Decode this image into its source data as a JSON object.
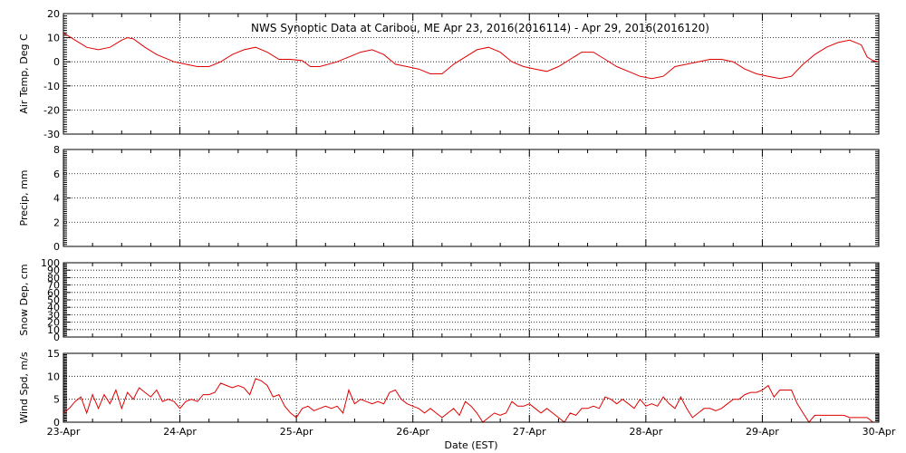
{
  "chart_data": {
    "type": "line",
    "title": "NWS Synoptic Data at Caribou, ME   Apr 23, 2016(2016114) - Apr 29, 2016(2016120)",
    "xlabel": "Date (EST)",
    "x_ticks": [
      "23-Apr",
      "24-Apr",
      "25-Apr",
      "26-Apr",
      "27-Apr",
      "28-Apr",
      "29-Apr",
      "30-Apr"
    ],
    "x_range_days": [
      0,
      7
    ],
    "grid": true,
    "panels": [
      {
        "ylabel": "Air Temp, Deg C",
        "ylim": [
          -30,
          20
        ],
        "yticks": [
          -30,
          -20,
          -10,
          0,
          10,
          20
        ],
        "series": [
          {
            "color": "#e00000",
            "points": [
              [
                0,
                12
              ],
              [
                0.1,
                9
              ],
              [
                0.2,
                6
              ],
              [
                0.3,
                5
              ],
              [
                0.4,
                6
              ],
              [
                0.5,
                9
              ],
              [
                0.55,
                10
              ],
              [
                0.6,
                9.5
              ],
              [
                0.7,
                6
              ],
              [
                0.8,
                3
              ],
              [
                0.95,
                0
              ],
              [
                1.05,
                -1
              ],
              [
                1.15,
                -2
              ],
              [
                1.25,
                -2
              ],
              [
                1.35,
                0
              ],
              [
                1.45,
                3
              ],
              [
                1.55,
                5
              ],
              [
                1.65,
                6
              ],
              [
                1.75,
                4
              ],
              [
                1.85,
                1
              ],
              [
                1.95,
                1
              ],
              [
                2.05,
                0.5
              ],
              [
                2.12,
                -2
              ],
              [
                2.2,
                -2
              ],
              [
                2.35,
                0
              ],
              [
                2.45,
                2
              ],
              [
                2.55,
                4
              ],
              [
                2.65,
                5
              ],
              [
                2.75,
                3
              ],
              [
                2.85,
                -1
              ],
              [
                2.95,
                -2
              ],
              [
                3.05,
                -3
              ],
              [
                3.15,
                -5
              ],
              [
                3.25,
                -5
              ],
              [
                3.35,
                -1
              ],
              [
                3.45,
                2
              ],
              [
                3.55,
                5
              ],
              [
                3.65,
                6
              ],
              [
                3.75,
                4
              ],
              [
                3.85,
                0
              ],
              [
                3.95,
                -2
              ],
              [
                4.05,
                -3
              ],
              [
                4.15,
                -4
              ],
              [
                4.25,
                -2
              ],
              [
                4.35,
                1
              ],
              [
                4.45,
                4
              ],
              [
                4.55,
                4
              ],
              [
                4.65,
                1
              ],
              [
                4.75,
                -2
              ],
              [
                4.85,
                -4
              ],
              [
                4.95,
                -6
              ],
              [
                5.05,
                -7
              ],
              [
                5.15,
                -6
              ],
              [
                5.25,
                -2
              ],
              [
                5.35,
                -1
              ],
              [
                5.45,
                0
              ],
              [
                5.55,
                1
              ],
              [
                5.65,
                1
              ],
              [
                5.75,
                0
              ],
              [
                5.85,
                -3
              ],
              [
                5.95,
                -5
              ],
              [
                6.05,
                -6
              ],
              [
                6.15,
                -7
              ],
              [
                6.25,
                -6
              ],
              [
                6.35,
                -1
              ],
              [
                6.45,
                3
              ],
              [
                6.55,
                6
              ],
              [
                6.65,
                8
              ],
              [
                6.75,
                9
              ],
              [
                6.85,
                7
              ],
              [
                6.9,
                2
              ],
              [
                6.95,
                0.5
              ],
              [
                7,
                0
              ]
            ]
          }
        ]
      },
      {
        "ylabel": "Precip, mm",
        "ylim": [
          0,
          8
        ],
        "yticks": [
          0,
          2,
          4,
          6,
          8
        ],
        "series": []
      },
      {
        "ylabel": "Snow Dep, cm",
        "ylim": [
          0,
          100
        ],
        "yticks": [
          0,
          10,
          20,
          30,
          40,
          50,
          60,
          70,
          80,
          90,
          100
        ],
        "series": []
      },
      {
        "ylabel": "Wind Spd, m/s",
        "ylim": [
          0,
          15
        ],
        "yticks": [
          0,
          5,
          10,
          15
        ],
        "series": [
          {
            "color": "#e00000",
            "points": [
              [
                0,
                2
              ],
              [
                0.05,
                3
              ],
              [
                0.1,
                4.5
              ],
              [
                0.15,
                5.5
              ],
              [
                0.2,
                2
              ],
              [
                0.25,
                6
              ],
              [
                0.3,
                3
              ],
              [
                0.35,
                6
              ],
              [
                0.4,
                4
              ],
              [
                0.45,
                7
              ],
              [
                0.5,
                3
              ],
              [
                0.55,
                6.5
              ],
              [
                0.6,
                5
              ],
              [
                0.65,
                7.5
              ],
              [
                0.7,
                6.5
              ],
              [
                0.75,
                5.5
              ],
              [
                0.8,
                7
              ],
              [
                0.85,
                4.5
              ],
              [
                0.9,
                5
              ],
              [
                0.95,
                4.5
              ],
              [
                1,
                3
              ],
              [
                1.05,
                4.5
              ],
              [
                1.1,
                5
              ],
              [
                1.15,
                4.5
              ],
              [
                1.2,
                6
              ],
              [
                1.25,
                6
              ],
              [
                1.3,
                6.5
              ],
              [
                1.35,
                8.5
              ],
              [
                1.4,
                8
              ],
              [
                1.45,
                7.5
              ],
              [
                1.5,
                8
              ],
              [
                1.55,
                7.5
              ],
              [
                1.6,
                6
              ],
              [
                1.65,
                9.5
              ],
              [
                1.7,
                9
              ],
              [
                1.75,
                8
              ],
              [
                1.8,
                5.5
              ],
              [
                1.85,
                6
              ],
              [
                1.9,
                3.5
              ],
              [
                1.95,
                2
              ],
              [
                2,
                1
              ],
              [
                2.05,
                3
              ],
              [
                2.1,
                3.5
              ],
              [
                2.15,
                2.5
              ],
              [
                2.2,
                3
              ],
              [
                2.25,
                3.5
              ],
              [
                2.3,
                3
              ],
              [
                2.35,
                3.5
              ],
              [
                2.4,
                2
              ],
              [
                2.45,
                7
              ],
              [
                2.5,
                4
              ],
              [
                2.55,
                5
              ],
              [
                2.6,
                4.5
              ],
              [
                2.65,
                4
              ],
              [
                2.7,
                4.5
              ],
              [
                2.75,
                4
              ],
              [
                2.8,
                6.5
              ],
              [
                2.85,
                7
              ],
              [
                2.9,
                5
              ],
              [
                2.95,
                4
              ],
              [
                3,
                3.5
              ],
              [
                3.05,
                3
              ],
              [
                3.1,
                2
              ],
              [
                3.15,
                3
              ],
              [
                3.2,
                2
              ],
              [
                3.25,
                1
              ],
              [
                3.3,
                2
              ],
              [
                3.35,
                3
              ],
              [
                3.4,
                1.5
              ],
              [
                3.45,
                4.5
              ],
              [
                3.5,
                3.5
              ],
              [
                3.55,
                2
              ],
              [
                3.6,
                0
              ],
              [
                3.65,
                1
              ],
              [
                3.7,
                2
              ],
              [
                3.75,
                1.5
              ],
              [
                3.8,
                2
              ],
              [
                3.85,
                4.5
              ],
              [
                3.9,
                3.5
              ],
              [
                3.95,
                3.5
              ],
              [
                4,
                4
              ],
              [
                4.05,
                3
              ],
              [
                4.1,
                2
              ],
              [
                4.15,
                3
              ],
              [
                4.2,
                2
              ],
              [
                4.25,
                1
              ],
              [
                4.3,
                0
              ],
              [
                4.35,
                2
              ],
              [
                4.4,
                1.5
              ],
              [
                4.45,
                3
              ],
              [
                4.5,
                3
              ],
              [
                4.55,
                3.5
              ],
              [
                4.6,
                3
              ],
              [
                4.65,
                5.5
              ],
              [
                4.7,
                5
              ],
              [
                4.75,
                4
              ],
              [
                4.8,
                5
              ],
              [
                4.85,
                4
              ],
              [
                4.9,
                3
              ],
              [
                4.95,
                5
              ],
              [
                5,
                3.5
              ],
              [
                5.05,
                4
              ],
              [
                5.1,
                3.5
              ],
              [
                5.15,
                5.5
              ],
              [
                5.2,
                4
              ],
              [
                5.25,
                3
              ],
              [
                5.3,
                5.5
              ],
              [
                5.35,
                3
              ],
              [
                5.4,
                1
              ],
              [
                5.45,
                2
              ],
              [
                5.5,
                3
              ],
              [
                5.55,
                3
              ],
              [
                5.6,
                2.5
              ],
              [
                5.65,
                3
              ],
              [
                5.7,
                4
              ],
              [
                5.75,
                5
              ],
              [
                5.8,
                5
              ],
              [
                5.85,
                6
              ],
              [
                5.9,
                6.5
              ],
              [
                5.95,
                6.5
              ],
              [
                6,
                7
              ],
              [
                6.05,
                8
              ],
              [
                6.1,
                5.5
              ],
              [
                6.15,
                7
              ],
              [
                6.2,
                7
              ],
              [
                6.25,
                7
              ],
              [
                6.3,
                4
              ],
              [
                6.35,
                2
              ],
              [
                6.4,
                0
              ],
              [
                6.45,
                1.5
              ],
              [
                6.5,
                1.5
              ],
              [
                6.55,
                1.5
              ],
              [
                6.6,
                1.5
              ],
              [
                6.65,
                1.5
              ],
              [
                6.7,
                1.5
              ],
              [
                6.75,
                1
              ],
              [
                6.8,
                1
              ],
              [
                6.85,
                1
              ],
              [
                6.9,
                1
              ],
              [
                6.95,
                0
              ],
              [
                7,
                0
              ]
            ]
          }
        ]
      }
    ]
  }
}
